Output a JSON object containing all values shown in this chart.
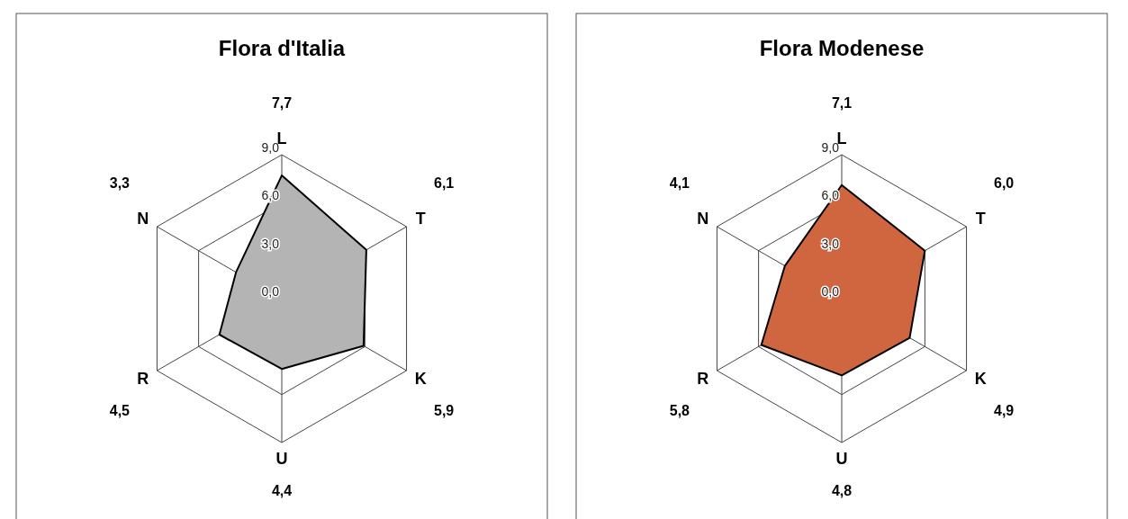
{
  "chart_data": [
    {
      "type": "radar",
      "title": "Flora d'Italia",
      "categories": [
        "L",
        "T",
        "K",
        "U",
        "R",
        "N"
      ],
      "ylim": [
        0,
        9
      ],
      "yticks": [
        {
          "value": 0,
          "label": "0,0"
        },
        {
          "value": 3,
          "label": "3,0"
        },
        {
          "value": 6,
          "label": "6,0"
        },
        {
          "value": 9,
          "label": "9,0"
        }
      ],
      "grid": true,
      "series": [
        {
          "color": "#b4b4b4",
          "values": [
            7.7,
            6.1,
            5.9,
            4.4,
            4.5,
            3.3
          ]
        }
      ],
      "annotations": [
        "7,7",
        "6,1",
        "5,9",
        "4,4",
        "4,5",
        "3,3"
      ]
    },
    {
      "type": "radar",
      "title": "Flora Modenese",
      "categories": [
        "L",
        "T",
        "K",
        "U",
        "R",
        "N"
      ],
      "ylim": [
        0,
        9
      ],
      "yticks": [
        {
          "value": 0,
          "label": "0,0"
        },
        {
          "value": 3,
          "label": "3,0"
        },
        {
          "value": 6,
          "label": "6,0"
        },
        {
          "value": 9,
          "label": "9,0"
        }
      ],
      "grid": true,
      "series": [
        {
          "color": "#d0663f",
          "values": [
            7.1,
            6.0,
            4.9,
            4.8,
            5.8,
            4.1
          ]
        }
      ],
      "annotations": [
        "7,1",
        "6,0",
        "4,9",
        "4,8",
        "5,8",
        "4,1"
      ]
    }
  ]
}
